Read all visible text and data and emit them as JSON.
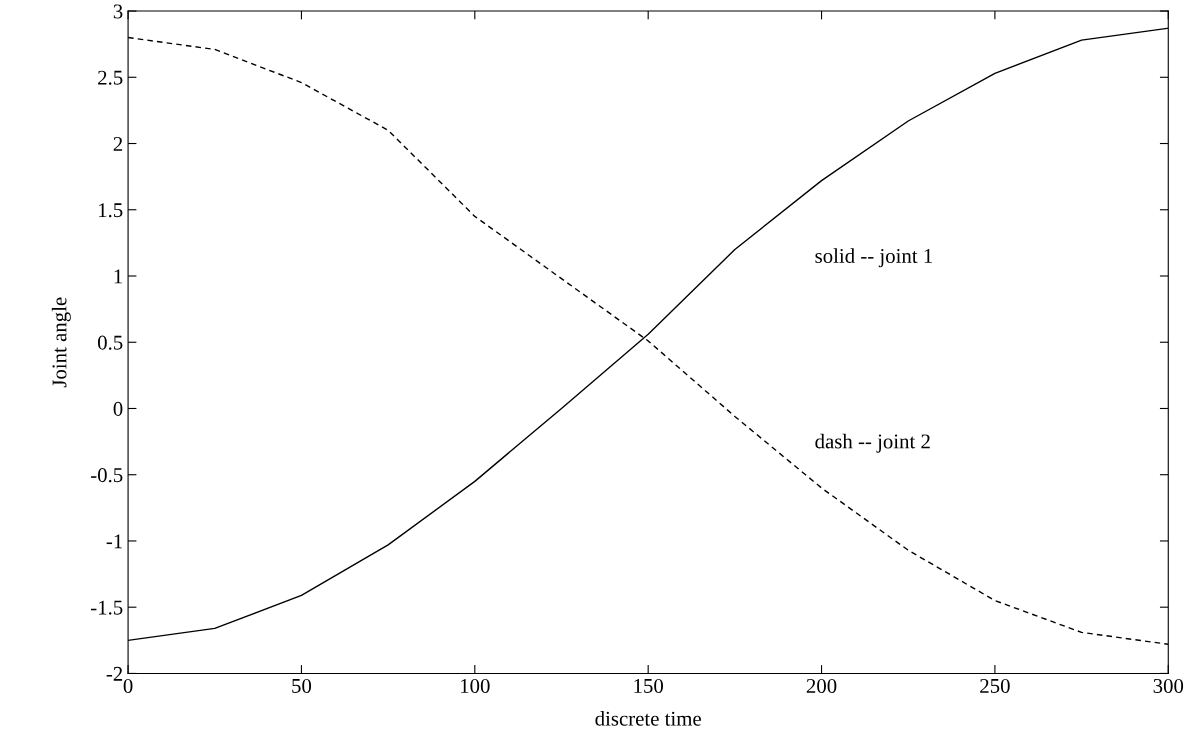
{
  "chart_data": {
    "type": "line",
    "xlabel": "discrete time",
    "ylabel": "Joint angle",
    "x": [
      0,
      25,
      50,
      75,
      100,
      125,
      150,
      175,
      200,
      225,
      250,
      275,
      300
    ],
    "series": [
      {
        "name": "solid -- joint 1",
        "color": "#000000",
        "line_style": "solid",
        "values": [
          -1.75,
          -1.66,
          -1.41,
          -1.03,
          -0.55,
          0.0,
          0.56,
          1.2,
          1.72,
          2.17,
          2.53,
          2.78,
          2.87
        ]
      },
      {
        "name": "dash -- joint 2",
        "color": "#000000",
        "line_style": "dashed",
        "values": [
          2.8,
          2.71,
          2.46,
          2.1,
          1.45,
          0.98,
          0.51,
          -0.06,
          -0.6,
          -1.07,
          -1.45,
          -1.69,
          -1.78
        ]
      }
    ],
    "xlim": [
      0,
      300
    ],
    "xticks": [
      0,
      50,
      100,
      150,
      200,
      250,
      300
    ],
    "ylim": [
      -2,
      3
    ],
    "yticks": [
      -2,
      -1.5,
      -1,
      -0.5,
      0,
      0.5,
      1,
      1.5,
      2,
      2.5,
      3
    ],
    "grid": false,
    "legend": false
  }
}
